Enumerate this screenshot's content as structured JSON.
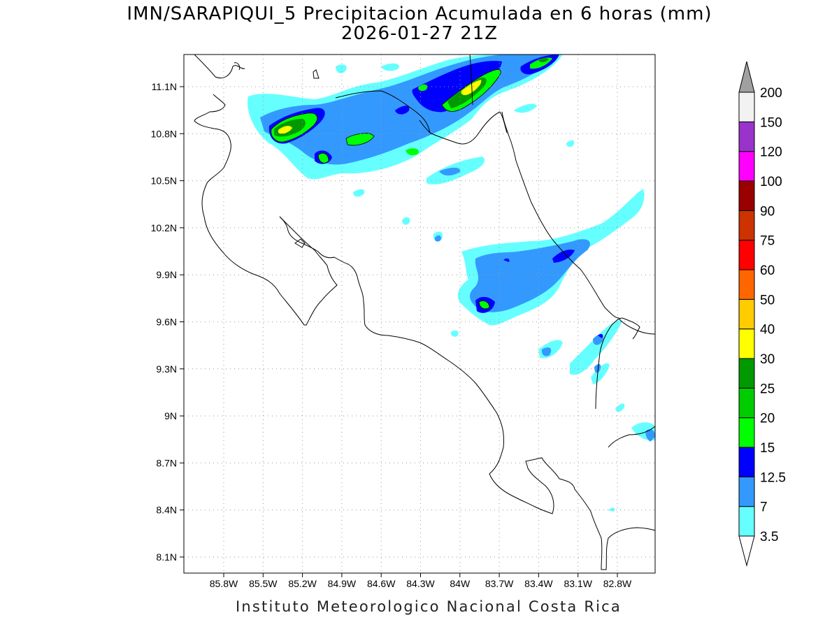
{
  "title": {
    "line1": "IMN/SARAPIQUI_5 Precipitacion Acumulada en 6 horas (mm)",
    "line2": "2026-01-27 21Z"
  },
  "footer": "Instituto Meteorologico Nacional Costa Rica",
  "map": {
    "lat_axis": {
      "unit": "N",
      "ticks": [
        {
          "value": 11.1,
          "label": "11.1N"
        },
        {
          "value": 10.8,
          "label": "10.8N"
        },
        {
          "value": 10.5,
          "label": "10.5N"
        },
        {
          "value": 10.2,
          "label": "10.2N"
        },
        {
          "value": 9.9,
          "label": "9.9N"
        },
        {
          "value": 9.6,
          "label": "9.6N"
        },
        {
          "value": 9.3,
          "label": "9.3N"
        },
        {
          "value": 9.0,
          "label": "9N"
        },
        {
          "value": 8.7,
          "label": "8.7N"
        },
        {
          "value": 8.4,
          "label": "8.4N"
        },
        {
          "value": 8.1,
          "label": "8.1N"
        }
      ]
    },
    "lon_axis": {
      "unit": "W",
      "ticks": [
        {
          "value": -85.8,
          "label": "85.8W"
        },
        {
          "value": -85.5,
          "label": "85.5W"
        },
        {
          "value": -85.2,
          "label": "85.2W"
        },
        {
          "value": -84.9,
          "label": "84.9W"
        },
        {
          "value": -84.6,
          "label": "84.6W"
        },
        {
          "value": -84.3,
          "label": "84.3W"
        },
        {
          "value": -84.0,
          "label": "84W"
        },
        {
          "value": -83.7,
          "label": "83.7W"
        },
        {
          "value": -83.4,
          "label": "83.4W"
        },
        {
          "value": -83.1,
          "label": "83.1W"
        },
        {
          "value": -82.8,
          "label": "82.8W"
        }
      ]
    },
    "grid": "dotted",
    "coastline_color": "#000000"
  },
  "colorbar": {
    "min_color": "#ffffff",
    "max_color": "#a0a0a0",
    "levels": [
      {
        "label": "3.5",
        "color": "#66ffff"
      },
      {
        "label": "7",
        "color": "#3399ff"
      },
      {
        "label": "12.5",
        "color": "#0000ff"
      },
      {
        "label": "15",
        "color": "#00ff00"
      },
      {
        "label": "20",
        "color": "#00cc00"
      },
      {
        "label": "25",
        "color": "#009900"
      },
      {
        "label": "30",
        "color": "#ffff00"
      },
      {
        "label": "40",
        "color": "#ffcc00"
      },
      {
        "label": "50",
        "color": "#ff6600"
      },
      {
        "label": "60",
        "color": "#ff0000"
      },
      {
        "label": "75",
        "color": "#cc3300"
      },
      {
        "label": "90",
        "color": "#990000"
      },
      {
        "label": "100",
        "color": "#ff00ff"
      },
      {
        "label": "120",
        "color": "#9933cc"
      },
      {
        "label": "150",
        "color": "#f2f2f2"
      },
      {
        "label": "200",
        "color": ""
      }
    ]
  }
}
